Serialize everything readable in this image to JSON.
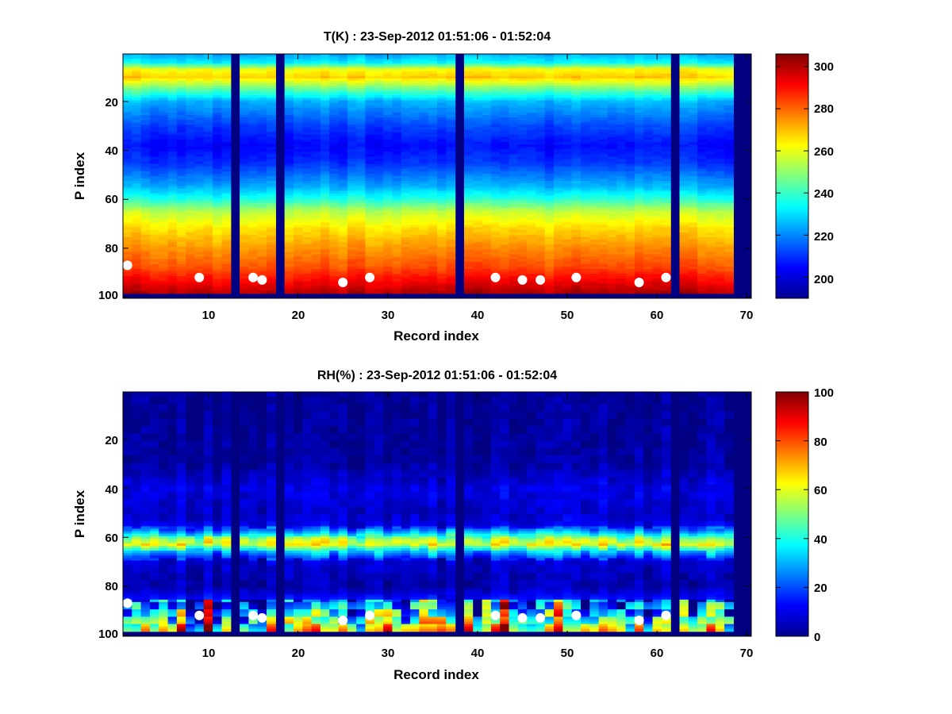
{
  "figure": {
    "panels": [
      {
        "title": "T(K) : 23-Sep-2012 01:51:06 - 01:52:04",
        "xlabel": "Record index",
        "ylabel": "P index",
        "xticks": [
          "10",
          "20",
          "30",
          "40",
          "50",
          "60",
          "70"
        ],
        "yticks": [
          "20",
          "40",
          "60",
          "80",
          "100"
        ],
        "colorbar_ticks": [
          "200",
          "220",
          "240",
          "260",
          "280",
          "300"
        ]
      },
      {
        "title": "RH(%) : 23-Sep-2012 01:51:06 - 01:52:04",
        "xlabel": "Record index",
        "ylabel": "P index",
        "xticks": [
          "10",
          "20",
          "30",
          "40",
          "50",
          "60",
          "70"
        ],
        "yticks": [
          "20",
          "40",
          "60",
          "80",
          "100"
        ],
        "colorbar_ticks": [
          "0",
          "20",
          "40",
          "60",
          "80",
          "100"
        ]
      }
    ]
  },
  "chart_data": [
    {
      "type": "heatmap",
      "title": "T(K) : 23-Sep-2012 01:51:06 - 01:52:04",
      "xlabel": "Record index",
      "ylabel": "P index",
      "xlim": [
        0.5,
        70.5
      ],
      "ylim": [
        0.5,
        100.5
      ],
      "y_reversed": true,
      "grid": false,
      "colormap": "jet",
      "clim": [
        190,
        306
      ],
      "missing_records": [
        13,
        18,
        38,
        62,
        69,
        70
      ],
      "missing_rows": [
        99,
        100
      ],
      "profile_p": [
        1,
        4,
        7,
        10,
        15,
        20,
        30,
        38,
        45,
        55,
        60,
        65,
        72,
        80,
        88,
        94,
        98
      ],
      "profile_value": [
        225,
        233,
        262,
        268,
        245,
        225,
        212,
        205,
        210,
        225,
        238,
        255,
        266,
        275,
        283,
        293,
        300
      ],
      "markers": {
        "x": [
          1,
          9,
          15,
          16,
          25,
          28,
          42,
          45,
          47,
          51,
          58,
          61
        ],
        "y": [
          87,
          92,
          92,
          93,
          94,
          92,
          92,
          93,
          93,
          92,
          94,
          92
        ],
        "color": "#ffffff"
      }
    },
    {
      "type": "heatmap",
      "title": "RH(%) : 23-Sep-2012 01:51:06 - 01:52:04",
      "xlabel": "Record index",
      "ylabel": "P index",
      "xlim": [
        0.5,
        70.5
      ],
      "ylim": [
        0.5,
        100.5
      ],
      "y_reversed": true,
      "grid": false,
      "colormap": "jet",
      "clim": [
        0,
        100
      ],
      "missing_records": [
        13,
        18,
        38,
        62,
        69,
        70
      ],
      "missing_rows": [
        99,
        100
      ],
      "profile_p": [
        1,
        30,
        40,
        50,
        55,
        58,
        61,
        63,
        66,
        70,
        80,
        86,
        92,
        96,
        98
      ],
      "profile_value": [
        2,
        3,
        10,
        7,
        10,
        30,
        55,
        60,
        30,
        8,
        4,
        15,
        30,
        45,
        55
      ],
      "markers": {
        "x": [
          1,
          9,
          15,
          16,
          25,
          28,
          42,
          45,
          47,
          51,
          58,
          61
        ],
        "y": [
          87,
          92,
          92,
          93,
          94,
          92,
          92,
          93,
          93,
          92,
          94,
          92
        ],
        "color": "#ffffff"
      }
    }
  ]
}
